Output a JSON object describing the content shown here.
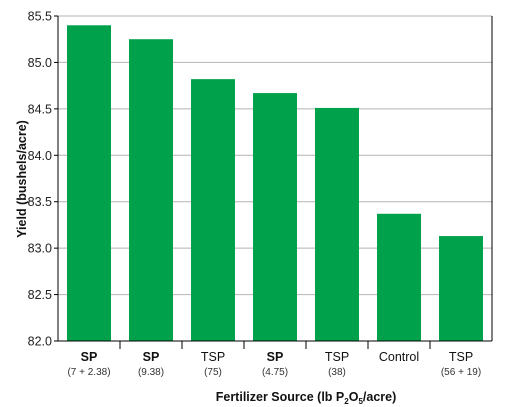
{
  "chart_data": {
    "type": "bar",
    "categories": [
      {
        "label": "SP",
        "bold": true,
        "sub": "(7 + 2.38)"
      },
      {
        "label": "SP",
        "bold": true,
        "sub": "(9.38)"
      },
      {
        "label": "TSP",
        "bold": false,
        "sub": "(75)"
      },
      {
        "label": "SP",
        "bold": true,
        "sub": "(4.75)"
      },
      {
        "label": "TSP",
        "bold": false,
        "sub": "(38)"
      },
      {
        "label": "Control",
        "bold": false,
        "sub": ""
      },
      {
        "label": "TSP",
        "bold": false,
        "sub": "(56 + 19)"
      }
    ],
    "values": [
      85.4,
      85.25,
      84.82,
      84.67,
      84.51,
      83.37,
      83.13
    ],
    "ylabel": "Yield (bushels/acre)",
    "xlabel": {
      "prefix": "Fertilizer Source (lb P",
      "sub1": "2",
      "mid": "O",
      "sub2": "5",
      "suffix": "/acre)"
    },
    "ylim": [
      82.0,
      85.5
    ],
    "yticks": [
      "82.0",
      "82.5",
      "83.0",
      "83.5",
      "84.0",
      "84.5",
      "85.0",
      "85.5"
    ],
    "grid": true,
    "bar_color": "#00a14b",
    "grid_color": "#b3b3b3"
  }
}
